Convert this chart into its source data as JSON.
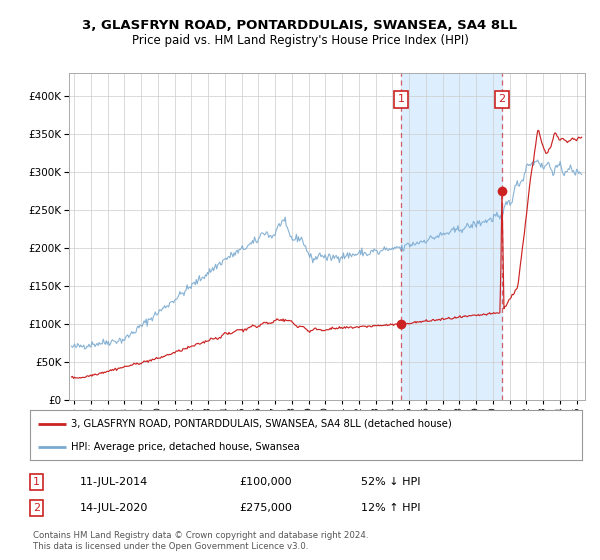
{
  "title": "3, GLASFRYN ROAD, PONTARDDULAIS, SWANSEA, SA4 8LL",
  "subtitle": "Price paid vs. HM Land Registry's House Price Index (HPI)",
  "sale1_date": "11-JUL-2014",
  "sale1_price": 100000,
  "sale1_hpi": "52% ↓ HPI",
  "sale1_label": "1",
  "sale1_year": 2014.53,
  "sale2_date": "14-JUL-2020",
  "sale2_price": 275000,
  "sale2_hpi": "12% ↑ HPI",
  "sale2_label": "2",
  "sale2_year": 2020.53,
  "legend_line1": "3, GLASFRYN ROAD, PONTARDDULAIS, SWANSEA, SA4 8LL (detached house)",
  "legend_line2": "HPI: Average price, detached house, Swansea",
  "footer1": "Contains HM Land Registry data © Crown copyright and database right 2024.",
  "footer2": "This data is licensed under the Open Government Licence v3.0.",
  "hpi_color": "#7aaad0",
  "price_color": "#cc2222",
  "bg_shaded_color": "#ddeeff",
  "ylim": [
    0,
    430000
  ],
  "yticks": [
    0,
    50000,
    100000,
    150000,
    200000,
    250000,
    300000,
    350000,
    400000
  ],
  "xlim_start": 1994.7,
  "xlim_end": 2025.5
}
